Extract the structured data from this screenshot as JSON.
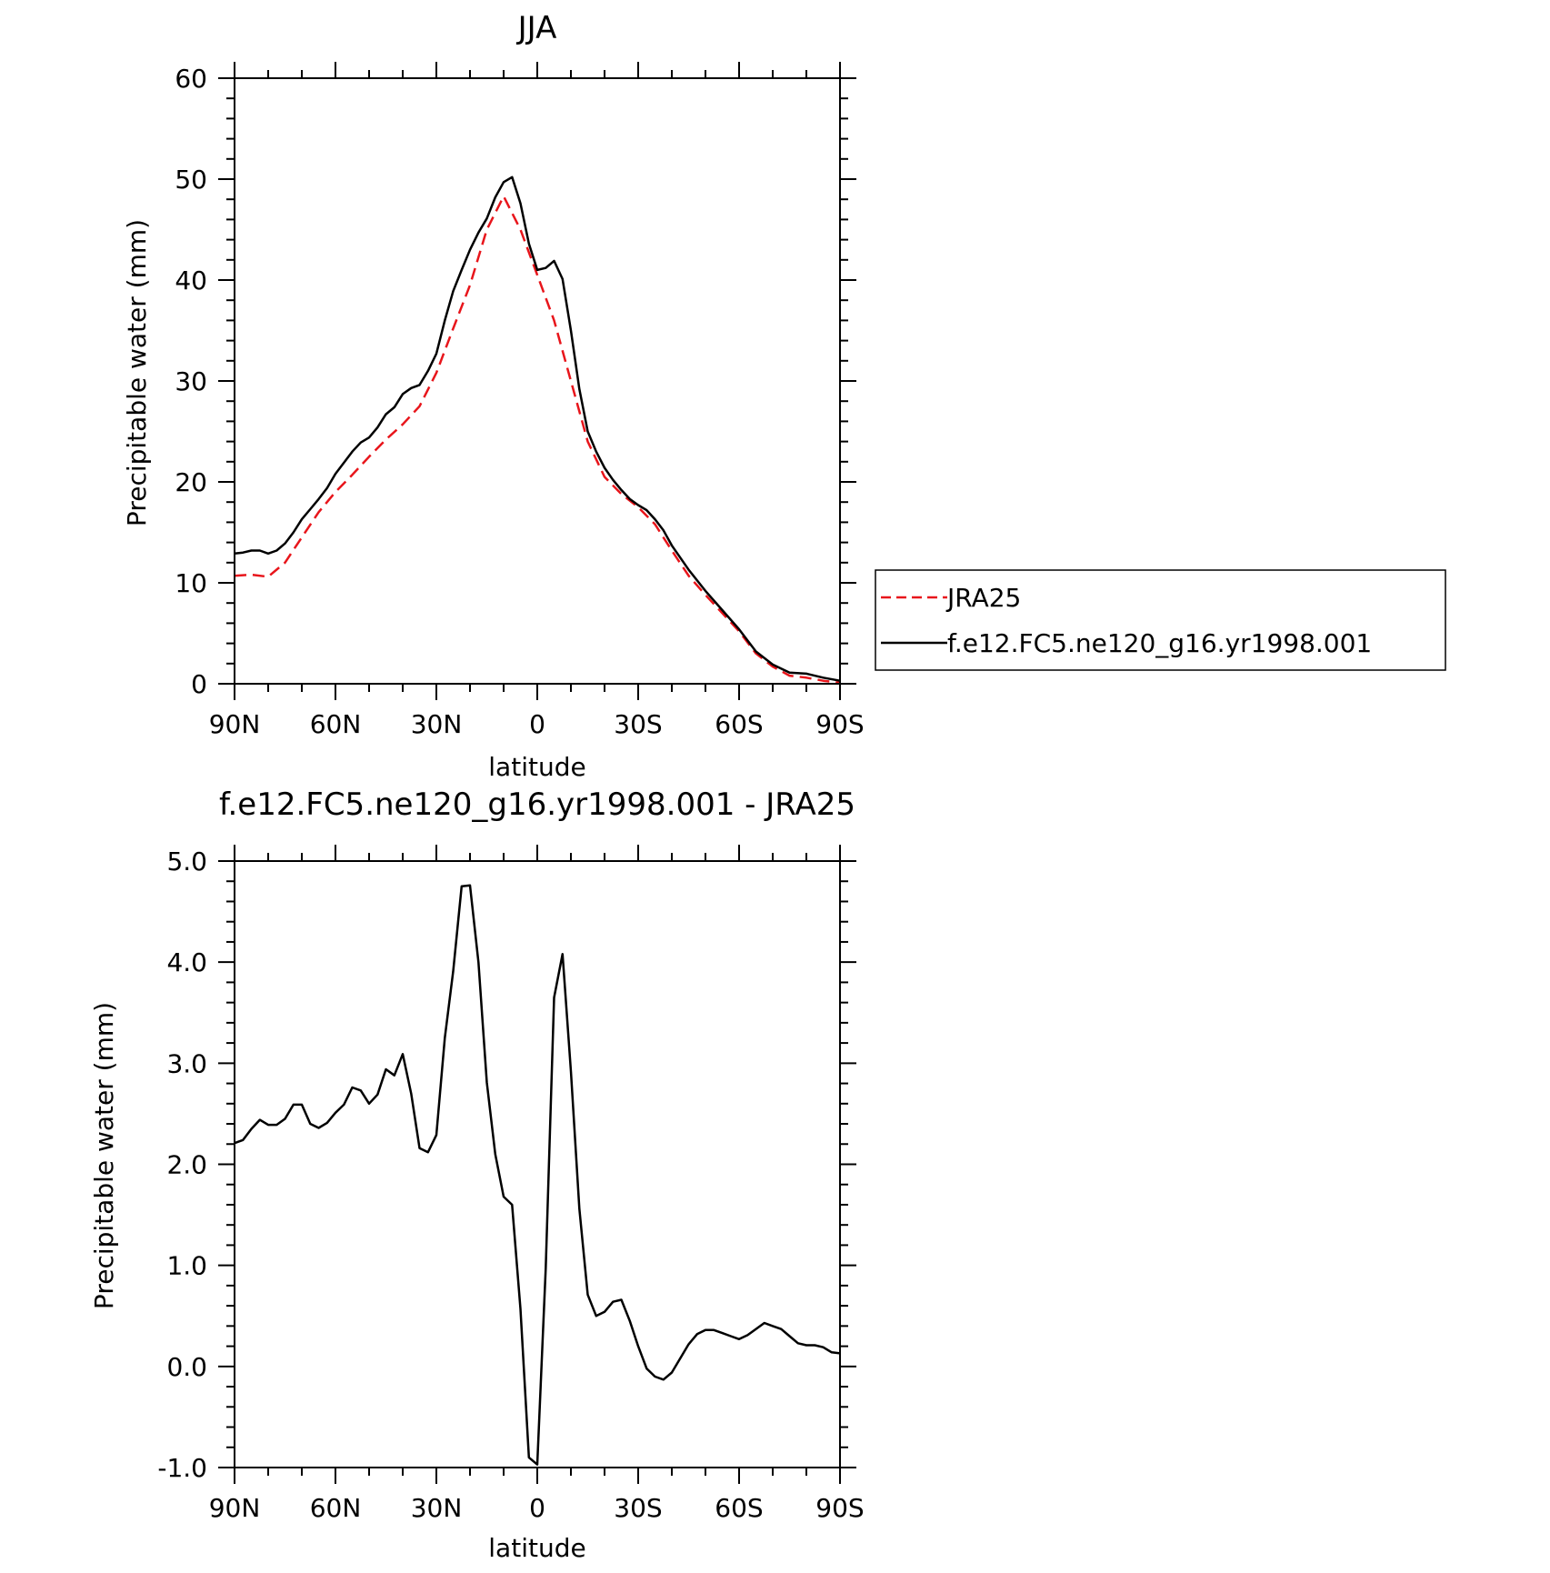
{
  "chart_data": [
    {
      "type": "line",
      "title": "JJA",
      "xlabel": "latitude",
      "ylabel": "Precipitable water (mm)",
      "xlim": [
        90,
        -90
      ],
      "ylim": [
        0,
        60
      ],
      "x_ticks": [
        90,
        60,
        30,
        0,
        -30,
        -60,
        -90
      ],
      "x_tick_labels": [
        "90N",
        "60N",
        "30N",
        "0",
        "30S",
        "60S",
        "90S"
      ],
      "y_ticks": [
        0,
        10,
        20,
        30,
        40,
        50,
        60
      ],
      "y_tick_labels": [
        "0",
        "10",
        "20",
        "30",
        "40",
        "50",
        "60"
      ],
      "legend_placement": "right",
      "series": [
        {
          "name": "JRA25",
          "color": "#e8151b",
          "dash": "dashed",
          "x": [
            90,
            85,
            80,
            75,
            70,
            65,
            60,
            55,
            50,
            45,
            40,
            35,
            30,
            25,
            20,
            15,
            10,
            5,
            0,
            -5,
            -10,
            -15,
            -20,
            -25,
            -30,
            -35,
            -40,
            -45,
            -50,
            -55,
            -60,
            -65,
            -70,
            -75,
            -80,
            -85,
            -90
          ],
          "values": [
            10.7,
            10.8,
            10.6,
            12.0,
            14.5,
            17.0,
            19.0,
            20.7,
            22.5,
            24.2,
            25.7,
            27.5,
            30.8,
            35.2,
            39.5,
            45.0,
            48.3,
            45.0,
            40.5,
            36.0,
            30.0,
            24.0,
            20.5,
            18.8,
            17.5,
            15.8,
            13.2,
            10.7,
            8.8,
            7.0,
            5.2,
            3.0,
            1.7,
            0.8,
            0.6,
            0.3,
            0.1
          ]
        },
        {
          "name": "f.e12.FC5.ne120_g16.yr1998.001",
          "color": "#000000",
          "dash": "solid",
          "x": [
            90,
            87.5,
            85,
            82.5,
            80,
            77.5,
            75,
            72.5,
            70,
            67.5,
            65,
            62.5,
            60,
            57.5,
            55,
            52.5,
            50,
            47.5,
            45,
            42.5,
            40,
            37.5,
            35,
            32.5,
            30,
            27.5,
            25,
            22.5,
            20,
            17.5,
            15,
            12.5,
            10,
            7.5,
            5,
            2.5,
            0,
            -2.5,
            -5,
            -7.5,
            -10,
            -12.5,
            -15,
            -17.5,
            -20,
            -22.5,
            -25,
            -27.5,
            -30,
            -32.5,
            -35,
            -37.5,
            -40,
            -45,
            -50,
            -55,
            -60,
            -65,
            -70,
            -75,
            -80,
            -85,
            -90
          ],
          "values": [
            12.9,
            13.0,
            13.2,
            13.2,
            12.9,
            13.2,
            13.9,
            15.0,
            16.3,
            17.3,
            18.3,
            19.4,
            20.8,
            21.9,
            23.0,
            23.9,
            24.4,
            25.4,
            26.7,
            27.4,
            28.7,
            29.3,
            29.6,
            31.0,
            32.7,
            36.0,
            38.9,
            41.0,
            43.0,
            44.7,
            46.1,
            48.2,
            49.7,
            50.2,
            47.6,
            43.6,
            41.0,
            41.2,
            41.9,
            40.1,
            35.0,
            29.2,
            25.0,
            23.0,
            21.4,
            20.2,
            19.2,
            18.3,
            17.7,
            17.2,
            16.3,
            15.2,
            13.7,
            11.3,
            9.2,
            7.3,
            5.4,
            3.2,
            1.9,
            1.1,
            1.0,
            0.6,
            0.3
          ]
        }
      ]
    },
    {
      "type": "line",
      "title": "f.e12.FC5.ne120_g16.yr1998.001 - JRA25",
      "xlabel": "latitude",
      "ylabel": "Precipitable water (mm)",
      "xlim": [
        90,
        -90
      ],
      "ylim": [
        -1.0,
        5.0
      ],
      "x_ticks": [
        90,
        60,
        30,
        0,
        -30,
        -60,
        -90
      ],
      "x_tick_labels": [
        "90N",
        "60N",
        "30N",
        "0",
        "30S",
        "60S",
        "90S"
      ],
      "y_ticks": [
        -1.0,
        0.0,
        1.0,
        2.0,
        3.0,
        4.0,
        5.0
      ],
      "y_tick_labels": [
        "-1.0",
        "0.0",
        "1.0",
        "2.0",
        "3.0",
        "4.0",
        "5.0"
      ],
      "series": [
        {
          "color": "#000000",
          "dash": "solid",
          "x": [
            90,
            87.5,
            85,
            82.5,
            80,
            77.5,
            75,
            72.5,
            70,
            67.5,
            65,
            62.5,
            60,
            57.5,
            55,
            52.5,
            50,
            47.5,
            45,
            42.5,
            40,
            37.5,
            35,
            32.5,
            30,
            27.5,
            25,
            22.5,
            20,
            17.5,
            15,
            12.5,
            10,
            7.5,
            5,
            2.5,
            0,
            -2.5,
            -5,
            -7.5,
            -10,
            -12.5,
            -15,
            -17.5,
            -20,
            -22.5,
            -25,
            -27.5,
            -30,
            -32.5,
            -35,
            -37.5,
            -40,
            -42.5,
            -45,
            -47.5,
            -50,
            -52.5,
            -55,
            -57.5,
            -60,
            -62.5,
            -65,
            -67.5,
            -70,
            -72.5,
            -75,
            -77.5,
            -80,
            -82.5,
            -85,
            -87.5,
            -90
          ],
          "values": [
            2.21,
            2.24,
            2.35,
            2.44,
            2.39,
            2.39,
            2.45,
            2.59,
            2.59,
            2.4,
            2.36,
            2.41,
            2.51,
            2.59,
            2.76,
            2.73,
            2.6,
            2.69,
            2.94,
            2.88,
            3.09,
            2.7,
            2.16,
            2.12,
            2.29,
            3.25,
            3.91,
            4.75,
            4.76,
            4.0,
            2.81,
            2.1,
            1.68,
            1.6,
            0.57,
            -0.9,
            -0.97,
            0.97,
            3.65,
            4.08,
            2.92,
            1.56,
            0.71,
            0.5,
            0.54,
            0.64,
            0.66,
            0.45,
            0.2,
            -0.02,
            -0.1,
            -0.13,
            -0.06,
            0.08,
            0.22,
            0.32,
            0.36,
            0.36,
            0.33,
            0.3,
            0.27,
            0.31,
            0.37,
            0.43,
            0.4,
            0.37,
            0.3,
            0.23,
            0.21,
            0.21,
            0.19,
            0.14,
            0.13
          ]
        }
      ]
    }
  ]
}
